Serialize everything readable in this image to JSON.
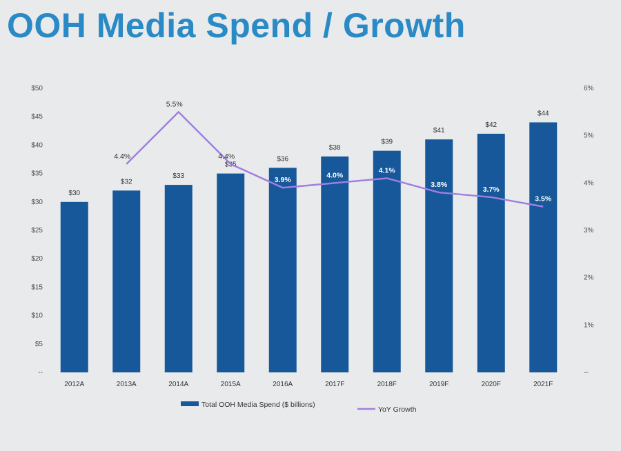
{
  "title": "OOH Media Spend / Growth",
  "colors": {
    "bar": "#165899",
    "line": "#a07fe0",
    "title": "#2a8ac6"
  },
  "chart_data": {
    "type": "bar",
    "title": "OOH Media Spend / Growth",
    "categories": [
      "2012A",
      "2013A",
      "2014A",
      "2015A",
      "2016A",
      "2017F",
      "2018F",
      "2019F",
      "2020F",
      "2021F"
    ],
    "series": [
      {
        "name": "Total OOH Media Spend ($ billions)",
        "type": "bar",
        "axis": "left",
        "values": [
          30,
          32,
          33,
          35,
          36,
          38,
          39,
          41,
          42,
          44
        ],
        "labels": [
          "$30",
          "$32",
          "$33",
          "$35",
          "$36",
          "$38",
          "$39",
          "$41",
          "$42",
          "$44"
        ]
      },
      {
        "name": "YoY Growth",
        "type": "line",
        "axis": "right",
        "values": [
          null,
          4.4,
          5.5,
          4.4,
          3.9,
          4.0,
          4.1,
          3.8,
          3.7,
          3.5
        ],
        "labels": [
          null,
          "4.4%",
          "5.5%",
          "4.4%",
          "3.9%",
          "4.0%",
          "4.1%",
          "3.8%",
          "3.7%",
          "3.5%"
        ]
      }
    ],
    "y_left": {
      "ylim": [
        0,
        50
      ],
      "ticks": [
        0,
        5,
        10,
        15,
        20,
        25,
        30,
        35,
        40,
        45,
        50
      ],
      "tick_labels": [
        "--",
        "$5",
        "$10",
        "$15",
        "$20",
        "$25",
        "$30",
        "$35",
        "$40",
        "$45",
        "$50"
      ]
    },
    "y_right": {
      "ylim": [
        0,
        6
      ],
      "ticks": [
        0,
        1,
        2,
        3,
        4,
        5,
        6
      ],
      "tick_labels": [
        "--",
        "1%",
        "2%",
        "3%",
        "4%",
        "5%",
        "6%"
      ]
    },
    "legend": {
      "placement": "bottom",
      "entries": [
        "Total OOH Media Spend ($ billions)",
        "YoY Growth"
      ]
    },
    "grid": false
  }
}
